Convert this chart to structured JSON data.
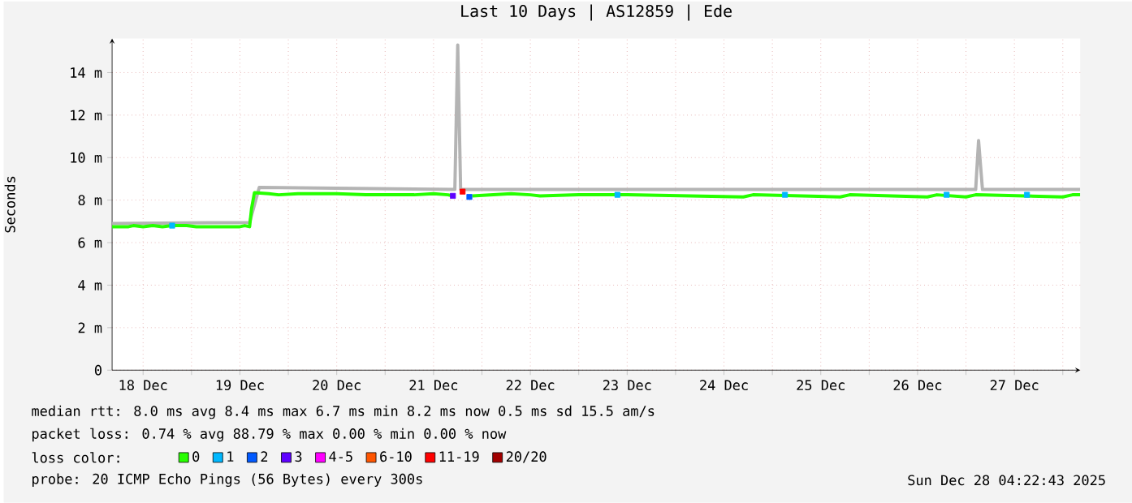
{
  "chart_data": {
    "type": "line",
    "title": "Last 10 Days | AS12859 | Ede",
    "ylabel": "Seconds",
    "legend_title": "loss color:",
    "legend": "bottom",
    "grid": true,
    "xlim": [
      "2025-12-17T16:19",
      "2025-12-27T16:19"
    ],
    "ylim": [
      0,
      15.6
    ],
    "xticks": [
      {
        "value": "2025-12-18",
        "label": "18 Dec"
      },
      {
        "value": "2025-12-18T12:00",
        "label": null
      },
      {
        "value": "2025-12-19",
        "label": "19 Dec"
      },
      {
        "value": "2025-12-19T12:00",
        "label": null
      },
      {
        "value": "2025-12-20",
        "label": "20 Dec"
      },
      {
        "value": "2025-12-20T12:00",
        "label": null
      },
      {
        "value": "2025-12-21",
        "label": "21 Dec"
      },
      {
        "value": "2025-12-21T12:00",
        "label": null
      },
      {
        "value": "2025-12-22",
        "label": "22 Dec"
      },
      {
        "value": "2025-12-22T12:00",
        "label": null
      },
      {
        "value": "2025-12-23",
        "label": "23 Dec"
      },
      {
        "value": "2025-12-23T12:00",
        "label": null
      },
      {
        "value": "2025-12-24",
        "label": "24 Dec"
      },
      {
        "value": "2025-12-24T12:00",
        "label": null
      },
      {
        "value": "2025-12-25",
        "label": "25 Dec"
      },
      {
        "value": "2025-12-25T12:00",
        "label": null
      },
      {
        "value": "2025-12-26",
        "label": "26 Dec"
      },
      {
        "value": "2025-12-26T12:00",
        "label": null
      },
      {
        "value": "2025-12-27",
        "label": "27 Dec"
      },
      {
        "value": "2025-12-27T12:00",
        "label": null
      }
    ],
    "yticks": [
      0,
      {
        "value": 2,
        "label": "2 m"
      },
      {
        "value": 4,
        "label": "4 m"
      },
      {
        "value": 6,
        "label": "6 m"
      },
      {
        "value": 8,
        "label": "8 m"
      },
      {
        "value": 10,
        "label": "10 m"
      },
      {
        "value": 12,
        "label": "12 m"
      },
      {
        "value": 14,
        "label": "14 m"
      }
    ],
    "annotations": [
      "median rtt: 8.0 ms avg 8.4 ms max 6.7 ms min 8.2 ms now 0.5 ms sd 15.5 am/s",
      "packet loss: 0.74 % avg 88.79 % max 0.00 % min 0.00 % now",
      "probe: 20 ICMP Echo Pings (56 Bytes) every 300s",
      "Sun Dec 28 04:22:43 2025"
    ],
    "series": [
      {
        "color": "#b4b4b4",
        "x": [
          "2025-12-17T16:19",
          "2025-12-19T02:24",
          "2025-12-19T04:48",
          "2025-12-21T05:17",
          "2025-12-21T06:00",
          "2025-12-21T06:43",
          "2025-12-26T14:24",
          "2025-12-26T15:07",
          "2025-12-26T16:05",
          "2025-12-27T16:19"
        ],
        "values": [
          6.9,
          6.95,
          8.6,
          8.5,
          15.3,
          8.5,
          8.5,
          10.8,
          8.5,
          8.5
        ]
      },
      {
        "name": "0",
        "color": "#26ff00",
        "x": [
          "2025-12-17T16:19",
          "2025-12-17T20:24",
          "2025-12-17T21:36",
          "2025-12-18T00:00",
          "2025-12-18T02:24",
          "2025-12-18T04:48",
          "2025-12-18T07:12",
          "2025-12-18T10:48",
          "2025-12-18T13:12",
          "2025-12-18T19:12",
          "2025-12-19T00:00",
          "2025-12-19T01:12",
          "2025-12-19T02:24",
          "2025-12-19T02:53",
          "2025-12-19T03:36",
          "2025-12-19T07:12",
          "2025-12-19T09:36",
          "2025-12-19T14:24",
          "2025-12-20T00:00",
          "2025-12-20T07:12",
          "2025-12-20T19:12",
          "2025-12-21T00:00",
          "2025-12-21T03:36",
          "2025-12-21T04:48",
          "2025-12-21T06:00",
          "2025-12-21T09:36",
          "2025-12-21T14:24",
          "2025-12-21T19:12",
          "2025-12-22T00:00",
          "2025-12-22T02:24",
          "2025-12-22T12:00",
          "2025-12-23T00:00",
          "2025-12-24T04:48",
          "2025-12-24T07:12",
          "2025-12-25T04:48",
          "2025-12-25T07:12",
          "2025-12-26T02:24",
          "2025-12-26T04:48",
          "2025-12-26T12:00",
          "2025-12-26T14:24",
          "2025-12-27T12:00",
          "2025-12-27T14:24",
          "2025-12-27T16:19"
        ],
        "values": [
          6.75,
          6.75,
          6.8,
          6.75,
          6.8,
          6.75,
          6.8,
          6.8,
          6.75,
          6.75,
          6.75,
          6.8,
          6.75,
          7.6,
          8.35,
          8.3,
          8.25,
          8.3,
          8.3,
          8.25,
          8.25,
          8.3,
          8.25,
          8.2,
          null,
          8.2,
          8.25,
          8.3,
          8.25,
          8.2,
          8.25,
          8.25,
          8.15,
          8.25,
          8.15,
          8.25,
          8.15,
          8.25,
          8.15,
          8.25,
          8.15,
          8.25,
          8.25
        ]
      },
      {
        "name": "1",
        "color": "#00b8ff",
        "type": "scatter",
        "marker": "square",
        "x": [
          "2025-12-18T07:12",
          "2025-12-22T21:36",
          "2025-12-24T15:07",
          "2025-12-26T07:12",
          "2025-12-27T03:07"
        ],
        "values": [
          6.8,
          8.25,
          8.25,
          8.25,
          8.25
        ]
      },
      {
        "name": "2",
        "color": "#0059ff",
        "type": "scatter",
        "marker": "square",
        "x": [
          "2025-12-21T08:53"
        ],
        "values": [
          8.15
        ]
      },
      {
        "name": "3",
        "color": "#5e00ff",
        "type": "scatter",
        "marker": "square",
        "x": [
          "2025-12-21T04:48"
        ],
        "values": [
          8.2
        ]
      },
      {
        "name": "4-5",
        "color": "#ff00ff",
        "type": "scatter",
        "marker": "square"
      },
      {
        "name": "6-10",
        "color": "#ff5500",
        "type": "scatter",
        "marker": "square"
      },
      {
        "name": "11-19",
        "color": "#ff0000",
        "type": "scatter",
        "marker": "square",
        "x": [
          "2025-12-21T07:12"
        ],
        "values": [
          8.4
        ]
      },
      {
        "name": "20/20",
        "color": "#a10000",
        "type": "scatter",
        "marker": "square"
      }
    ]
  }
}
